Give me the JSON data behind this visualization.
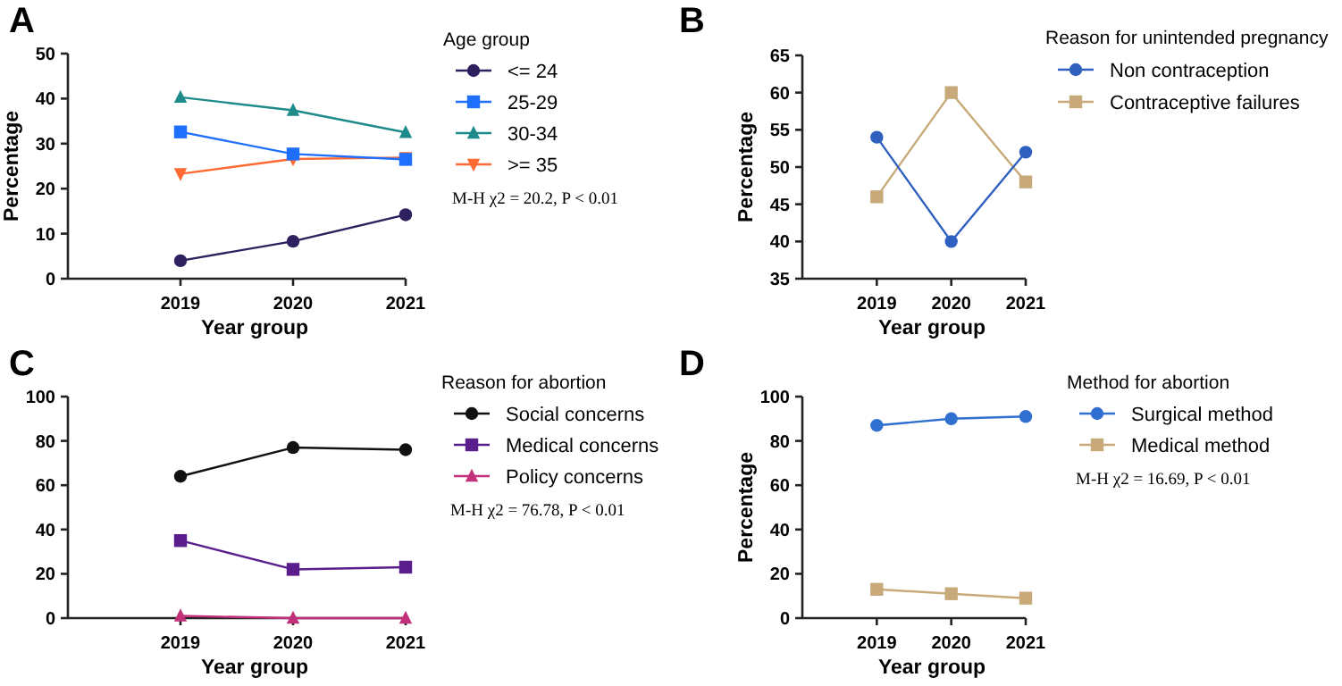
{
  "chart_data": [
    {
      "type": "line",
      "title": "A",
      "xlabel": "Year group",
      "ylabel": "Percentage",
      "legend_title": "Age group",
      "legend": "right",
      "grid": false,
      "x": [
        2019,
        2020,
        2021
      ],
      "xlim": [
        2018,
        2021
      ],
      "xticks": [
        2019,
        2020,
        2021
      ],
      "ylim": [
        0,
        50
      ],
      "yticks": [
        0,
        10,
        20,
        30,
        40,
        50
      ],
      "annotations": [
        "M-H χ2 = 20.2, P < 0.01"
      ],
      "series": [
        {
          "name": "<= 24",
          "color": "#2e1f5e",
          "marker": "circle",
          "values": [
            4,
            8.3,
            14.2
          ]
        },
        {
          "name": "25-29",
          "color": "#1f6fff",
          "marker": "square",
          "values": [
            32.6,
            27.7,
            26.5
          ]
        },
        {
          "name": "30-34",
          "color": "#1f8a8a",
          "marker": "triangle",
          "values": [
            40.3,
            37.4,
            32.5
          ]
        },
        {
          "name": ">= 35",
          "color": "#ff6a33",
          "marker": "triangle-down",
          "values": [
            23.3,
            26.6,
            26.9
          ]
        }
      ]
    },
    {
      "type": "line",
      "title": "B",
      "xlabel": "Year group",
      "ylabel": "Percentage",
      "legend_title": "Reason for unintended pregnancy",
      "legend": "right",
      "grid": false,
      "x": [
        2019,
        2020,
        2021
      ],
      "xlim": [
        2018,
        2021
      ],
      "xticks": [
        2019,
        2020,
        2021
      ],
      "ylim": [
        35,
        65
      ],
      "yticks": [
        35,
        40,
        45,
        50,
        55,
        60,
        65
      ],
      "series": [
        {
          "name": "Non contraception",
          "color": "#2f5fbf",
          "marker": "circle",
          "values": [
            54,
            40,
            52
          ]
        },
        {
          "name": "Contraceptive failures",
          "color": "#c8aa7a",
          "marker": "square",
          "values": [
            46,
            60,
            48
          ]
        }
      ]
    },
    {
      "type": "line",
      "title": "C",
      "xlabel": "Year group",
      "legend_title": "Reason for abortion",
      "legend": "right",
      "grid": false,
      "x": [
        2019,
        2020,
        2021
      ],
      "xlim": [
        2018,
        2021
      ],
      "xticks": [
        2019,
        2020,
        2021
      ],
      "ylim": [
        0,
        100
      ],
      "yticks": [
        0,
        20,
        40,
        60,
        80,
        100
      ],
      "annotations": [
        "M-H χ2 = 76.78, P < 0.01"
      ],
      "series": [
        {
          "name": "Social concerns",
          "color": "#111111",
          "marker": "circle",
          "values": [
            64,
            77,
            76
          ]
        },
        {
          "name": "Medical concerns",
          "color": "#5a1e8c",
          "marker": "square",
          "values": [
            35,
            22,
            23
          ]
        },
        {
          "name": "Policy concerns",
          "color": "#c2307a",
          "marker": "triangle",
          "values": [
            1,
            0,
            0
          ]
        }
      ]
    },
    {
      "type": "line",
      "title": "D",
      "xlabel": "Year group",
      "ylabel": "Percentage",
      "legend_title": "Method for abortion",
      "legend": "right",
      "grid": false,
      "x": [
        2019,
        2020,
        2021
      ],
      "xlim": [
        2018,
        2021
      ],
      "xticks": [
        2019,
        2020,
        2021
      ],
      "ylim": [
        0,
        100
      ],
      "yticks": [
        0,
        20,
        40,
        60,
        80,
        100
      ],
      "annotations": [
        "M-H χ2 = 16.69, P < 0.01"
      ],
      "series": [
        {
          "name": "Surgical method",
          "color": "#2f6fd0",
          "marker": "circle",
          "values": [
            87,
            90,
            91
          ]
        },
        {
          "name": "Medical method",
          "color": "#c8aa7a",
          "marker": "square",
          "values": [
            13,
            11,
            9
          ]
        }
      ]
    }
  ]
}
